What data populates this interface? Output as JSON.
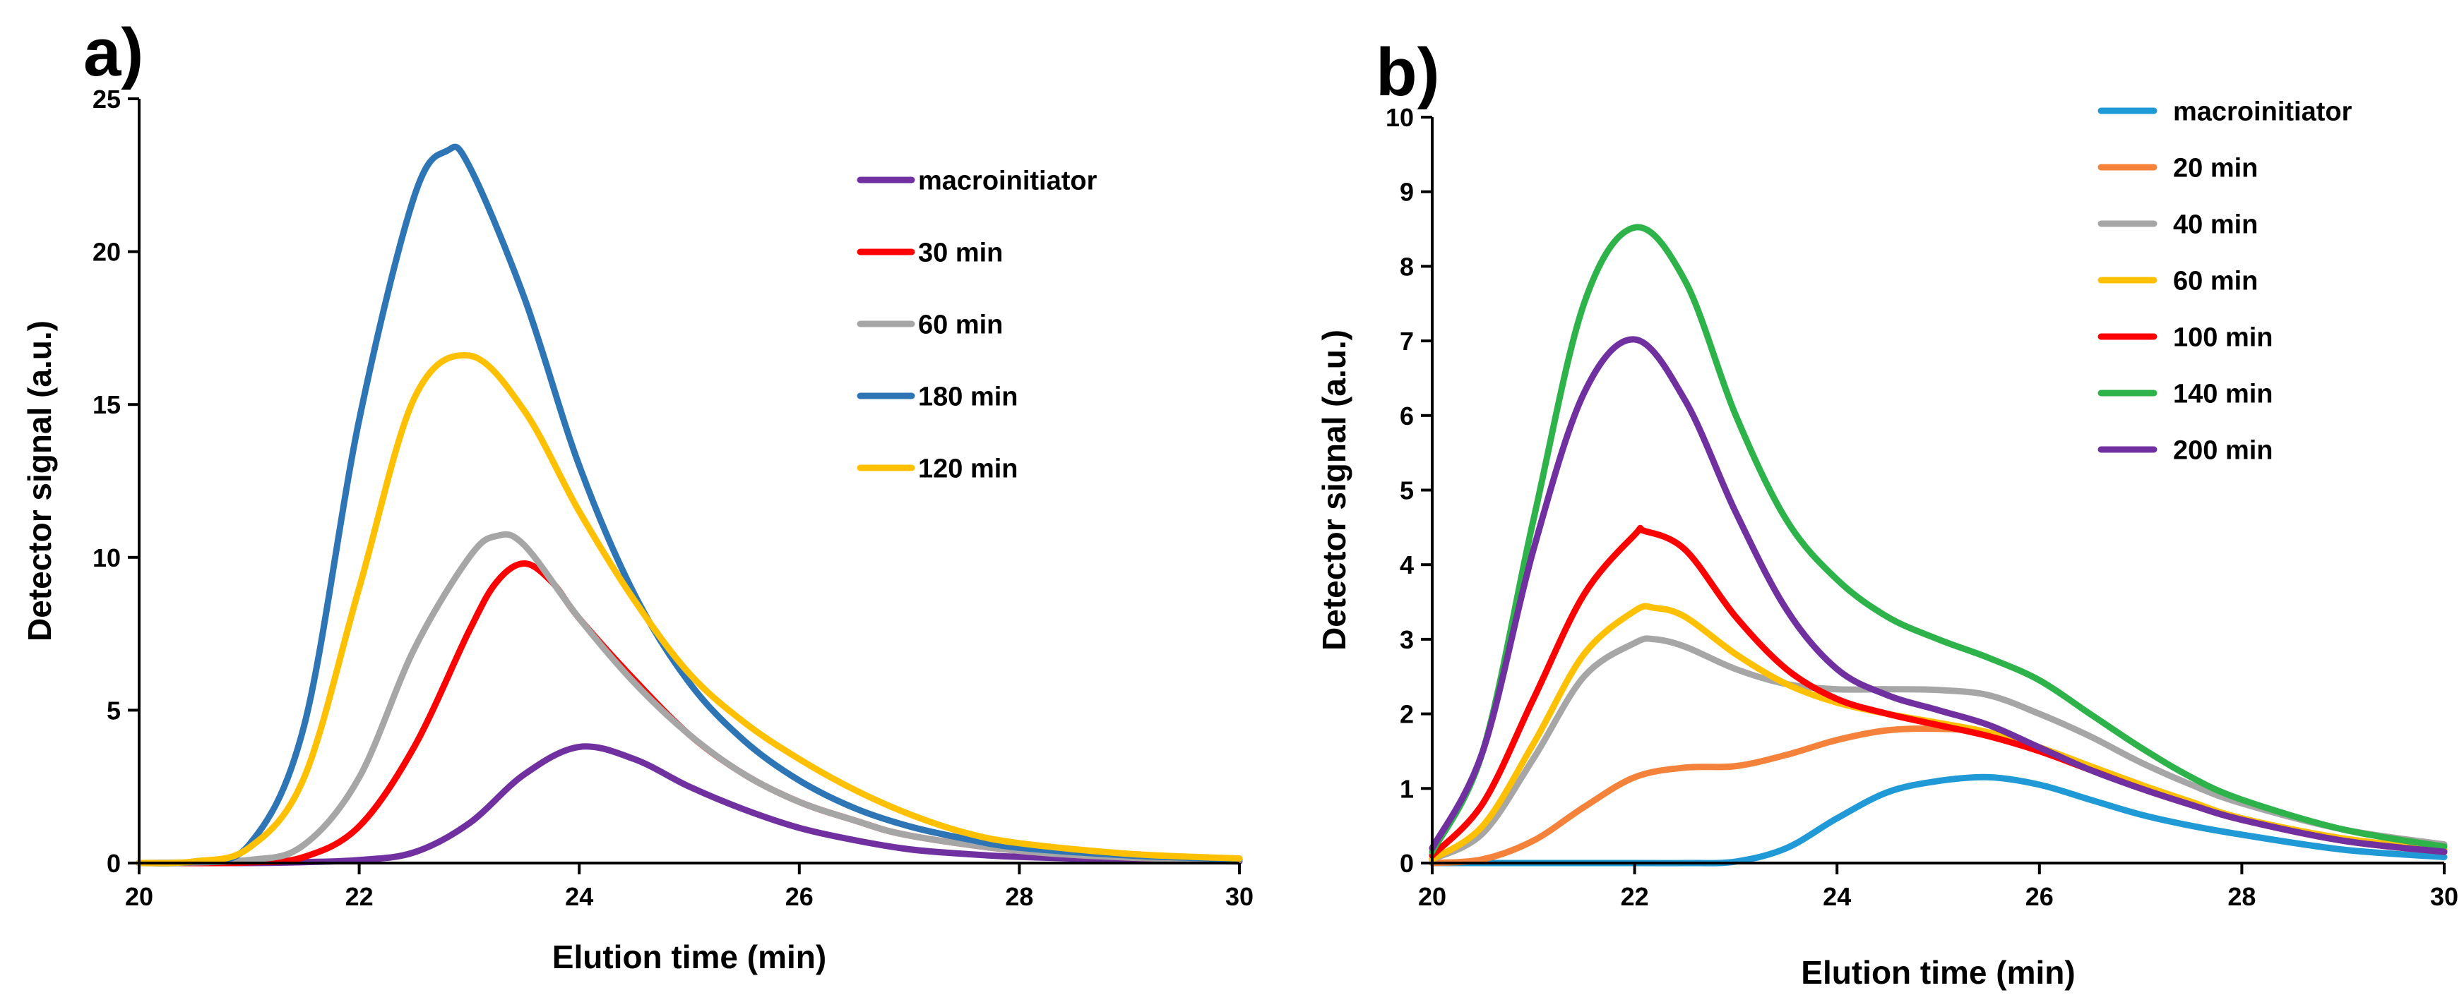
{
  "chart_data": [
    {
      "panel": "a)",
      "type": "line",
      "title": "",
      "xlabel": "Elution time (min)",
      "ylabel": "Detector signal (a.u.)",
      "xlim": [
        20,
        30
      ],
      "ylim": [
        0,
        25
      ],
      "xticks": [
        20,
        22,
        24,
        26,
        28,
        30
      ],
      "yticks": [
        0,
        5,
        10,
        15,
        20,
        25
      ],
      "legend": "top-right",
      "series": [
        {
          "name": "macroinitiator",
          "color": "#7030A0",
          "x": [
            20,
            21,
            21.5,
            22,
            22.5,
            23,
            23.5,
            24,
            24.5,
            25,
            25.5,
            26,
            26.5,
            27,
            27.5,
            28,
            29,
            30
          ],
          "y": [
            0,
            0,
            0.03,
            0.1,
            0.35,
            1.3,
            2.9,
            3.8,
            3.4,
            2.5,
            1.75,
            1.15,
            0.75,
            0.45,
            0.3,
            0.2,
            0.1,
            0.05
          ]
        },
        {
          "name": "30 min",
          "color": "#FF0000",
          "x": [
            20,
            21,
            21.5,
            22,
            22.5,
            23,
            23.25,
            23.5,
            23.75,
            24,
            24.5,
            25,
            25.5,
            26,
            26.5,
            27,
            28,
            29,
            30
          ],
          "y": [
            0,
            0.02,
            0.2,
            1.2,
            3.8,
            7.6,
            9.2,
            9.8,
            9.2,
            8.0,
            6.0,
            4.2,
            2.9,
            2.0,
            1.4,
            0.9,
            0.4,
            0.18,
            0.1
          ]
        },
        {
          "name": "60 min",
          "color": "#A6A6A6",
          "x": [
            20,
            21,
            21.5,
            22,
            22.5,
            23,
            23.25,
            23.5,
            24,
            24.5,
            25,
            25.5,
            26,
            26.5,
            27,
            28,
            29,
            30
          ],
          "y": [
            0,
            0.1,
            0.6,
            2.8,
            7.0,
            10.0,
            10.7,
            10.4,
            8.0,
            5.9,
            4.2,
            2.9,
            2.0,
            1.4,
            0.9,
            0.4,
            0.18,
            0.1
          ]
        },
        {
          "name": "180 min",
          "color": "#2E75B6",
          "x": [
            20,
            20.5,
            21,
            21.5,
            22,
            22.5,
            22.8,
            23,
            23.5,
            24,
            24.5,
            25,
            25.5,
            26,
            26.5,
            27,
            27.5,
            28,
            29,
            30
          ],
          "y": [
            0,
            0.05,
            0.6,
            4.5,
            14.5,
            21.8,
            23.3,
            22.8,
            18.5,
            13.0,
            8.8,
            5.9,
            4.0,
            2.7,
            1.8,
            1.2,
            0.8,
            0.5,
            0.25,
            0.12
          ]
        },
        {
          "name": "120 min",
          "color": "#FFC000",
          "x": [
            20,
            20.5,
            21,
            21.5,
            22,
            22.5,
            23,
            23.5,
            24,
            24.5,
            25,
            25.5,
            26,
            26.5,
            27,
            27.5,
            28,
            29,
            30
          ],
          "y": [
            0,
            0.05,
            0.5,
            2.8,
            9.0,
            15.2,
            16.6,
            14.8,
            11.5,
            8.6,
            6.2,
            4.6,
            3.4,
            2.4,
            1.6,
            1.0,
            0.65,
            0.3,
            0.15
          ]
        }
      ]
    },
    {
      "panel": "b)",
      "type": "line",
      "title": "",
      "xlabel": "Elution time (min)",
      "ylabel": "Detector signal (a.u.)",
      "xlim": [
        20,
        30
      ],
      "ylim": [
        0,
        10
      ],
      "xticks": [
        20,
        22,
        24,
        26,
        28,
        30
      ],
      "yticks": [
        0,
        1,
        2,
        3,
        4,
        5,
        6,
        7,
        8,
        9,
        10
      ],
      "legend": "top-right",
      "series": [
        {
          "name": "macroinitiator",
          "color": "#1F9AD6",
          "x": [
            20,
            22,
            22.5,
            23,
            23.5,
            24,
            24.5,
            25,
            25.5,
            26,
            26.5,
            27,
            27.5,
            28,
            29,
            30
          ],
          "y": [
            0,
            0,
            0,
            0.02,
            0.2,
            0.6,
            0.95,
            1.1,
            1.15,
            1.05,
            0.85,
            0.65,
            0.5,
            0.38,
            0.18,
            0.08
          ]
        },
        {
          "name": "20 min",
          "color": "#F4823A",
          "x": [
            20,
            20.5,
            21,
            21.5,
            22,
            22.5,
            23,
            23.5,
            24,
            24.5,
            25,
            25.5,
            26,
            26.5,
            27,
            27.5,
            28,
            29,
            30
          ],
          "y": [
            0,
            0.05,
            0.3,
            0.75,
            1.15,
            1.28,
            1.3,
            1.45,
            1.65,
            1.78,
            1.8,
            1.75,
            1.55,
            1.3,
            1.05,
            0.8,
            0.6,
            0.3,
            0.15
          ]
        },
        {
          "name": "40 min",
          "color": "#A6A6A6",
          "x": [
            20,
            20.5,
            21,
            21.5,
            22,
            22.2,
            22.5,
            23,
            23.5,
            24,
            24.5,
            25,
            25.5,
            26,
            26.5,
            27,
            27.5,
            28,
            29,
            30
          ],
          "y": [
            0.05,
            0.4,
            1.4,
            2.5,
            2.95,
            3.0,
            2.9,
            2.6,
            2.4,
            2.33,
            2.33,
            2.32,
            2.25,
            2.0,
            1.7,
            1.35,
            1.05,
            0.8,
            0.45,
            0.25
          ]
        },
        {
          "name": "60 min",
          "color": "#FFC000",
          "x": [
            20,
            20.5,
            21,
            21.5,
            22,
            22.2,
            22.5,
            23,
            23.5,
            24,
            24.5,
            25,
            25.5,
            26,
            26.5,
            27,
            27.5,
            28,
            29,
            30
          ],
          "y": [
            0.05,
            0.5,
            1.6,
            2.8,
            3.38,
            3.42,
            3.3,
            2.8,
            2.4,
            2.15,
            2.0,
            1.88,
            1.75,
            1.55,
            1.3,
            1.05,
            0.82,
            0.6,
            0.33,
            0.18
          ]
        },
        {
          "name": "100 min",
          "color": "#FF0000",
          "x": [
            20,
            20.5,
            21,
            21.5,
            22,
            22.1,
            22.5,
            23,
            23.5,
            24,
            24.5,
            25,
            25.5,
            26,
            26.5,
            27,
            27.5,
            28,
            29,
            30
          ],
          "y": [
            0.1,
            0.8,
            2.2,
            3.6,
            4.4,
            4.45,
            4.2,
            3.3,
            2.6,
            2.2,
            2.0,
            1.85,
            1.7,
            1.5,
            1.25,
            1.0,
            0.78,
            0.58,
            0.3,
            0.15
          ]
        },
        {
          "name": "140 min",
          "color": "#2DB34A",
          "x": [
            20,
            20.5,
            21,
            21.5,
            22,
            22.5,
            23,
            23.5,
            24,
            24.5,
            25,
            25.5,
            26,
            26.5,
            27,
            27.5,
            28,
            29,
            30
          ],
          "y": [
            0.15,
            1.5,
            4.6,
            7.5,
            8.52,
            7.8,
            6.0,
            4.6,
            3.8,
            3.3,
            3.0,
            2.75,
            2.45,
            2.0,
            1.55,
            1.15,
            0.85,
            0.45,
            0.22
          ]
        },
        {
          "name": "200 min",
          "color": "#7030A0",
          "x": [
            20,
            20.5,
            21,
            21.5,
            22,
            22.5,
            23,
            23.5,
            24,
            24.5,
            25,
            25.5,
            26,
            26.5,
            27,
            27.5,
            28,
            29,
            30
          ],
          "y": [
            0.2,
            1.5,
            4.2,
            6.3,
            7.02,
            6.2,
            4.7,
            3.4,
            2.6,
            2.25,
            2.05,
            1.85,
            1.55,
            1.25,
            1.0,
            0.78,
            0.58,
            0.3,
            0.15
          ]
        }
      ]
    }
  ]
}
